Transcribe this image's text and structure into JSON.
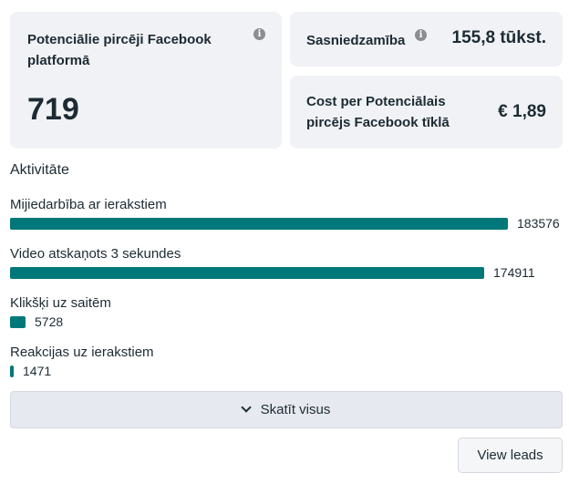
{
  "cards": {
    "potential": {
      "title": "Potenciālie pircēji Facebook platformā",
      "value": "719",
      "info_icon": "info-icon"
    },
    "reach": {
      "title": "Sasniedzamība",
      "value": "155,8 tūkst.",
      "info_icon": "info-icon"
    },
    "cost": {
      "title": "Cost per Potenciālais pircējs Facebook tīklā",
      "value": "€ 1,89"
    }
  },
  "activity": {
    "title": "Aktivitāte",
    "bar_color": "#00787a",
    "max_value": 183576,
    "items": [
      {
        "label": "Mijiedarbība ar ierakstiem",
        "value": 183576
      },
      {
        "label": "Video atskaņots 3 sekundes",
        "value": 174911
      },
      {
        "label": "Klikšķi uz saitēm",
        "value": 5728
      },
      {
        "label": "Reakcijas uz ierakstiem",
        "value": 1471
      }
    ]
  },
  "buttons": {
    "see_all": "Skatīt visus",
    "see_all_icon": "chevron-down-icon",
    "view_leads": "View leads"
  }
}
